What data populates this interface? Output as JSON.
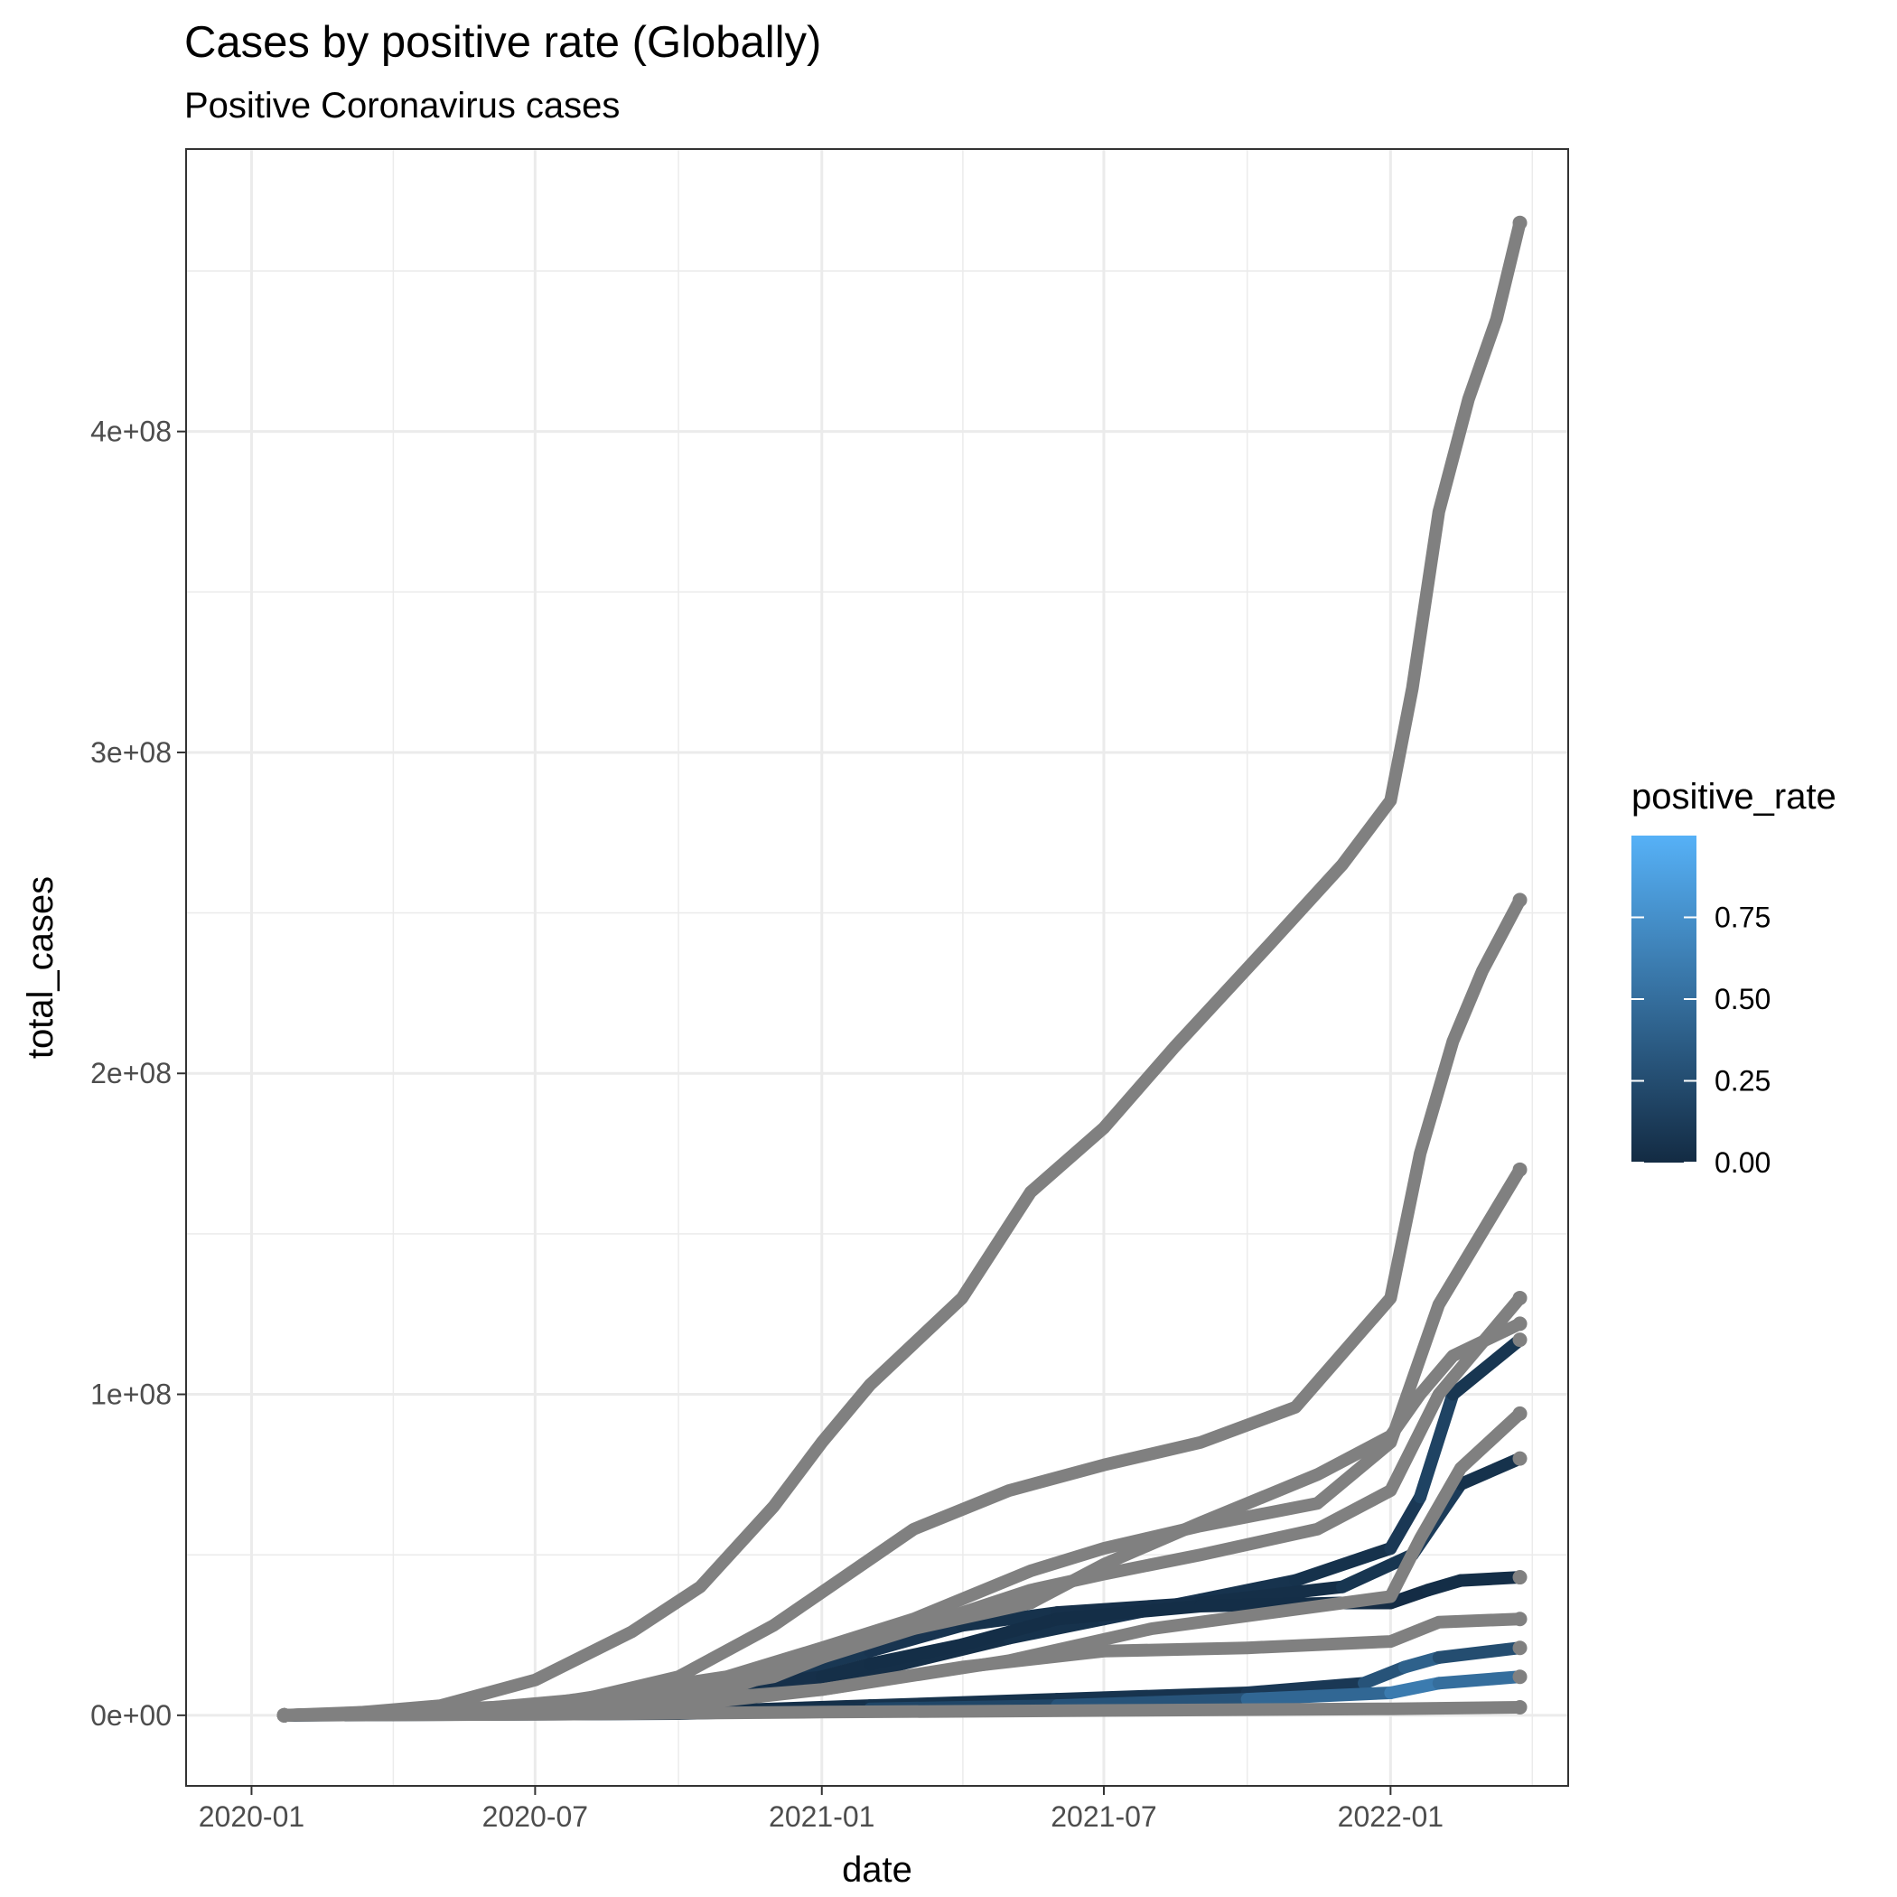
{
  "chart_data": {
    "type": "line",
    "title": "Cases by positive rate (Globally)",
    "subtitle": "Positive Coronavirus cases",
    "xlabel": "date",
    "ylabel": "total_cases",
    "x_tick_labels": [
      "2020-01",
      "2020-07",
      "2021-01",
      "2021-07",
      "2022-01"
    ],
    "x_ticks": [
      "2020-01-01",
      "2020-07-01",
      "2021-01-01",
      "2021-07-01",
      "2022-01-01"
    ],
    "xlim": [
      "2019-11-20",
      "2022-04-25"
    ],
    "y_tick_labels": [
      "0e+00",
      "1e+08",
      "2e+08",
      "3e+08",
      "4e+08"
    ],
    "y_ticks": [
      0,
      100000000,
      200000000,
      300000000,
      400000000
    ],
    "ylim": [
      -22000000,
      488000000
    ],
    "grid": true,
    "legend": {
      "title": "positive_rate",
      "placement": "right",
      "type": "colorbar",
      "labels": [
        "0.75",
        "0.50",
        "0.25",
        "0.00"
      ],
      "values": [
        0.75,
        0.5,
        0.25,
        0
      ],
      "range": [
        0,
        1
      ],
      "colors": [
        "#132b43",
        "#56b1f7"
      ]
    },
    "na_color": "#808080",
    "series": [
      {
        "colored": false,
        "x": [
          "2020-01-22",
          "2020-03-01",
          "2020-05-01",
          "2020-07-01",
          "2020-09-01",
          "2020-10-15",
          "2020-12-01",
          "2021-01-01",
          "2021-02-01",
          "2021-04-01",
          "2021-05-15",
          "2021-07-01",
          "2021-08-15",
          "2021-10-15",
          "2021-12-01",
          "2022-01-01",
          "2022-01-15",
          "2022-02-01",
          "2022-02-20",
          "2022-03-10",
          "2022-03-25"
        ],
        "y": [
          0,
          500000,
          3000000,
          11000000,
          26000000,
          40000000,
          65000000,
          85000000,
          103000000,
          130000000,
          163000000,
          183000000,
          208000000,
          240000000,
          265000000,
          285000000,
          320000000,
          375000000,
          410000000,
          435000000,
          465000000
        ]
      },
      {
        "colored": false,
        "x": [
          "2020-01-22",
          "2020-05-01",
          "2020-08-01",
          "2020-10-01",
          "2020-12-01",
          "2021-01-15",
          "2021-03-01",
          "2021-05-01",
          "2021-07-01",
          "2021-09-01",
          "2021-11-01",
          "2022-01-01",
          "2022-01-20",
          "2022-02-10",
          "2022-03-01",
          "2022-03-25"
        ],
        "y": [
          0,
          1000000,
          5000000,
          12000000,
          28000000,
          43000000,
          58000000,
          70000000,
          78000000,
          85000000,
          96000000,
          130000000,
          175000000,
          210000000,
          232000000,
          254000000
        ]
      },
      {
        "colored": false,
        "x": [
          "2020-01-22",
          "2020-07-01",
          "2020-11-01",
          "2021-01-01",
          "2021-03-01",
          "2021-05-15",
          "2021-07-01",
          "2021-09-01",
          "2021-11-15",
          "2022-01-01",
          "2022-02-01",
          "2022-03-25"
        ],
        "y": [
          0,
          3000000,
          12000000,
          21000000,
          30000000,
          45000000,
          52000000,
          59000000,
          66000000,
          85000000,
          128000000,
          170000000
        ]
      },
      {
        "colored": false,
        "x": [
          "2020-01-22",
          "2020-07-01",
          "2020-11-01",
          "2021-01-01",
          "2021-03-01",
          "2021-05-15",
          "2021-07-01",
          "2021-09-01",
          "2021-11-15",
          "2022-01-01",
          "2022-02-01",
          "2022-03-25"
        ],
        "y": [
          0,
          2000000,
          8000000,
          18000000,
          27000000,
          39000000,
          44000000,
          50000000,
          58000000,
          70000000,
          100000000,
          130000000
        ]
      },
      {
        "colored": false,
        "x": [
          "2020-01-22",
          "2020-08-01",
          "2020-12-01",
          "2021-02-01",
          "2021-05-15",
          "2021-07-01",
          "2021-09-01",
          "2021-11-15",
          "2022-01-01",
          "2022-01-20",
          "2022-02-10",
          "2022-03-25"
        ],
        "y": [
          0,
          2000000,
          12000000,
          24000000,
          35000000,
          47000000,
          60000000,
          75000000,
          87000000,
          100000000,
          112000000,
          122000000
        ]
      },
      {
        "colored": true,
        "x": [
          "2020-01-22",
          "2020-09-01",
          "2021-01-01",
          "2021-05-01",
          "2021-07-01",
          "2021-09-01",
          "2021-11-01",
          "2022-01-01",
          "2022-01-20",
          "2022-02-10",
          "2022-03-25"
        ],
        "y": [
          0,
          2000000,
          10000000,
          24000000,
          30000000,
          36000000,
          42000000,
          52000000,
          68000000,
          100000000,
          117000000
        ],
        "rates": [
          0.02,
          0.05,
          0.03,
          0.05,
          0.07,
          0.06,
          0.05,
          0.1,
          0.18,
          0.08,
          0.04
        ]
      },
      {
        "colored": false,
        "x": [
          "2020-01-22",
          "2020-08-01",
          "2021-01-01",
          "2021-05-01",
          "2021-08-01",
          "2021-11-01",
          "2022-01-01",
          "2022-01-20",
          "2022-02-15",
          "2022-03-25"
        ],
        "y": [
          0,
          2000000,
          8000000,
          17000000,
          27000000,
          33000000,
          37000000,
          55000000,
          77000000,
          94000000
        ]
      },
      {
        "colored": true,
        "x": [
          "2020-01-22",
          "2020-09-01",
          "2020-12-01",
          "2021-02-01",
          "2021-04-01",
          "2021-06-01",
          "2021-09-01",
          "2021-12-01",
          "2022-01-15",
          "2022-02-15",
          "2022-03-25"
        ],
        "y": [
          0,
          3000000,
          12000000,
          20000000,
          28000000,
          32000000,
          35000000,
          40000000,
          50000000,
          72000000,
          80000000
        ],
        "rates": [
          0.02,
          0.06,
          0.09,
          0.07,
          0.05,
          0.04,
          0.03,
          0.08,
          0.12,
          0.05,
          0.03
        ]
      },
      {
        "colored": true,
        "x": [
          "2020-01-22",
          "2020-10-01",
          "2020-12-01",
          "2021-01-01",
          "2021-02-01",
          "2021-04-01",
          "2021-06-01",
          "2021-09-01",
          "2021-12-01",
          "2022-01-01",
          "2022-01-25",
          "2022-02-15",
          "2022-03-25"
        ],
        "y": [
          0,
          3000000,
          10000000,
          12000000,
          16000000,
          22000000,
          30000000,
          34000000,
          35000000,
          35000000,
          39000000,
          42000000,
          43000000
        ],
        "rates": [
          0.03,
          0.05,
          0.04,
          0.03,
          0.02,
          0.02,
          0.02,
          0.02,
          0.01,
          0.01,
          0.02,
          0.02,
          0.01
        ]
      },
      {
        "colored": false,
        "x": [
          "2020-01-22",
          "2020-10-01",
          "2021-01-01",
          "2021-04-01",
          "2021-07-01",
          "2021-10-01",
          "2022-01-01",
          "2022-02-01",
          "2022-03-25"
        ],
        "y": [
          0,
          3000000,
          8000000,
          15000000,
          20000000,
          21000000,
          23000000,
          29000000,
          30000000
        ]
      },
      {
        "colored": true,
        "x": [
          "2020-01-22",
          "2020-10-01",
          "2021-02-01",
          "2021-06-01",
          "2021-10-01",
          "2021-12-15",
          "2022-01-10",
          "2022-02-01",
          "2022-03-25"
        ],
        "y": [
          0,
          1000000,
          3000000,
          5000000,
          7000000,
          10000000,
          15000000,
          18000000,
          21000000
        ],
        "rates": [
          0.02,
          0.03,
          0.05,
          0.06,
          0.1,
          0.3,
          0.4,
          0.25,
          0.2
        ]
      },
      {
        "colored": true,
        "x": [
          "2020-01-22",
          "2020-10-01",
          "2021-02-01",
          "2021-06-01",
          "2021-10-01",
          "2022-01-01",
          "2022-02-01",
          "2022-03-25"
        ],
        "y": [
          0,
          500000,
          2000000,
          3000000,
          5000000,
          7000000,
          10000000,
          12000000
        ],
        "rates": [
          0.03,
          0.05,
          0.2,
          0.3,
          0.45,
          0.6,
          0.5,
          0.4
        ]
      },
      {
        "colored": false,
        "x": [
          "2020-01-22",
          "2020-07-01",
          "2021-01-01",
          "2021-07-01",
          "2022-01-01",
          "2022-03-25"
        ],
        "y": [
          0,
          300000,
          1000000,
          1500000,
          2000000,
          2500000
        ]
      }
    ]
  }
}
